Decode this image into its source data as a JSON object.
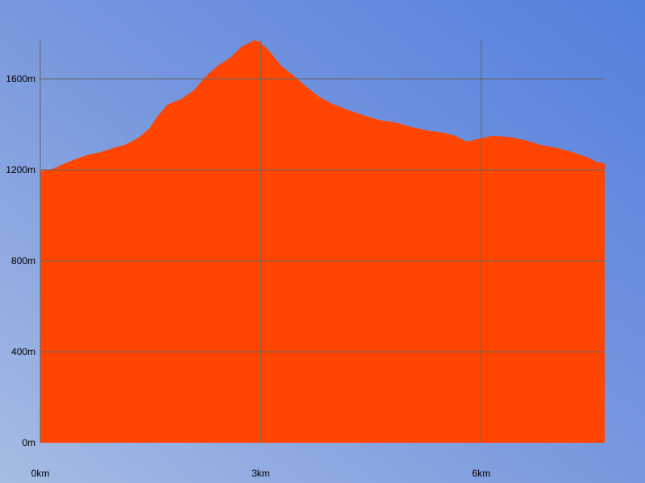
{
  "chart_data": {
    "type": "area",
    "color": "#ff4500",
    "grid": true,
    "x": [
      0,
      0.16,
      0.33,
      0.5,
      0.66,
      0.82,
      0.99,
      1.15,
      1.32,
      1.48,
      1.59,
      1.73,
      1.92,
      2.09,
      2.25,
      2.41,
      2.58,
      2.74,
      2.91,
      2.99,
      3.13,
      3.29,
      3.46,
      3.62,
      3.79,
      3.95,
      4.17,
      4.39,
      4.61,
      4.83,
      5.05,
      5.27,
      5.49,
      5.65,
      5.8,
      5.98,
      6.15,
      6.37,
      6.59,
      6.81,
      7.03,
      7.24,
      7.46,
      7.57,
      7.68
    ],
    "values": [
      1196,
      1203,
      1228,
      1250,
      1267,
      1278,
      1296,
      1310,
      1338,
      1380,
      1434,
      1487,
      1512,
      1550,
      1611,
      1657,
      1692,
      1742,
      1770,
      1763,
      1717,
      1653,
      1611,
      1565,
      1522,
      1494,
      1465,
      1441,
      1419,
      1409,
      1388,
      1373,
      1363,
      1349,
      1324,
      1338,
      1349,
      1345,
      1331,
      1310,
      1296,
      1278,
      1253,
      1235,
      1228
    ],
    "xlim": [
      0,
      7.68
    ],
    "xticks": [
      {
        "value": 0,
        "label": "0km"
      },
      {
        "value": 3,
        "label": "3km"
      },
      {
        "value": 6,
        "label": "6km"
      }
    ],
    "ylim": [
      0,
      1770
    ],
    "yticks": [
      {
        "value": 0,
        "label": "0m"
      },
      {
        "value": 400,
        "label": "400m"
      },
      {
        "value": 800,
        "label": "800m"
      },
      {
        "value": 1200,
        "label": "1200m"
      },
      {
        "value": 1600,
        "label": "1600m"
      }
    ]
  }
}
